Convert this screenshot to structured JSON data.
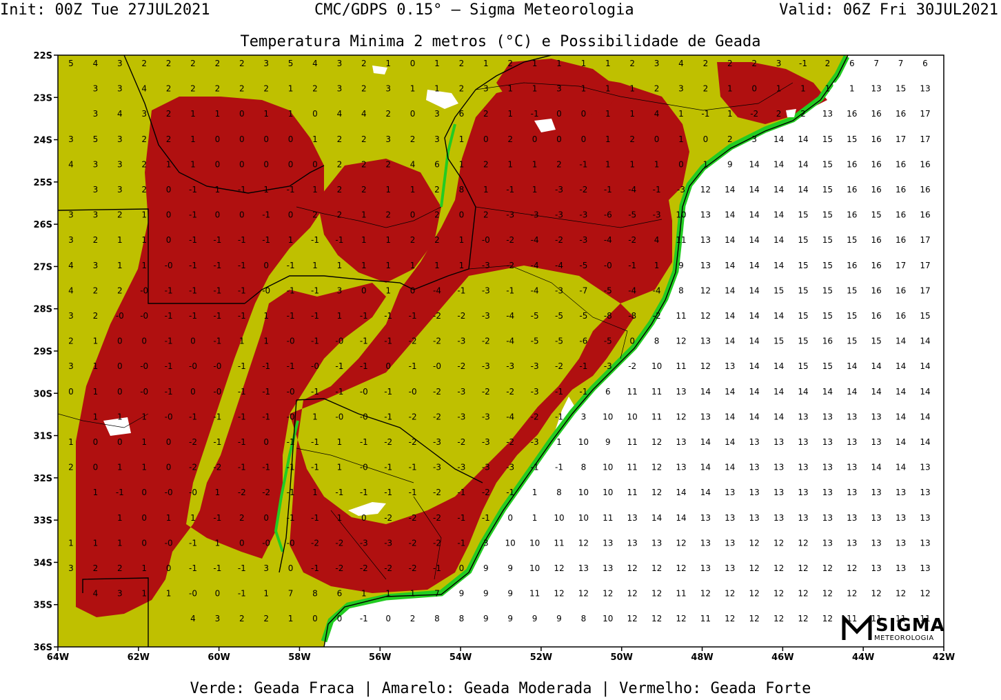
{
  "header": {
    "init": "Init: 00Z Tue 27JUL2021",
    "model": "CMC/GDPS 0.15° — Sigma Meteorologia",
    "valid": "Valid: 06Z Fri 30JUL2021",
    "title": "Temperatura Minima 2 metros (°C) e Possibilidade de Geada"
  },
  "legend": {
    "text": "Verde: Geada Fraca | Amarelo: Geada Moderada | Vermelho: Geada Forte"
  },
  "logo": {
    "brand": "SIGMA",
    "sub": "METEOROLOGIA"
  },
  "colors": {
    "geada_fraca": "#22cc22",
    "geada_moderada": "#bfc000",
    "geada_forte": "#b01010",
    "sea": "#ffffff"
  },
  "axes": {
    "lat_labels": [
      "22S",
      "23S",
      "24S",
      "25S",
      "26S",
      "27S",
      "28S",
      "29S",
      "30S",
      "31S",
      "32S",
      "33S",
      "34S",
      "35S",
      "36S"
    ],
    "lon_labels": [
      "64W",
      "62W",
      "60W",
      "58W",
      "56W",
      "54W",
      "52W",
      "50W",
      "48W",
      "46W",
      "44W",
      "42W"
    ]
  },
  "grid_values": {
    "rows": [
      [
        "5",
        "5",
        "4",
        "3",
        "2",
        "2",
        "2",
        "2",
        "2",
        "3",
        "5",
        "4",
        "3",
        "2",
        "1",
        "0",
        "1",
        "2",
        "1",
        "2",
        "1",
        "1",
        "1",
        "1",
        "2",
        "3",
        "4",
        "2",
        "2",
        "2",
        "3",
        "-1",
        "2",
        "6",
        "7",
        "7",
        "6"
      ],
      [
        "3",
        "3",
        "4",
        "2",
        "2",
        "2",
        "2",
        "2",
        "1",
        "2",
        "3",
        "2",
        "3",
        "1",
        "1",
        "2",
        "3",
        "1",
        "1",
        "3",
        "1",
        "1",
        "1",
        "2",
        "3",
        "2",
        "1",
        "0",
        "1",
        "1",
        "1",
        "1",
        "13",
        "15",
        "13"
      ],
      [
        "3",
        "4",
        "3",
        "2",
        "1",
        "1",
        "0",
        "1",
        "1",
        "0",
        "4",
        "4",
        "2",
        "0",
        "3",
        "6",
        "2",
        "1",
        "-1",
        "0",
        "0",
        "1",
        "1",
        "4",
        "1",
        "-1",
        "1",
        "-2",
        "2",
        "2",
        "13",
        "16",
        "16",
        "16",
        "17"
      ],
      [
        "3",
        "5",
        "3",
        "2",
        "2",
        "1",
        "0",
        "0",
        "0",
        "0",
        "1",
        "2",
        "2",
        "3",
        "2",
        "3",
        "1",
        "0",
        "2",
        "0",
        "0",
        "0",
        "1",
        "2",
        "0",
        "1",
        "0",
        "2",
        "3",
        "14",
        "14",
        "15",
        "15",
        "16",
        "17",
        "17"
      ],
      [
        "4",
        "3",
        "3",
        "2",
        "1",
        "1",
        "0",
        "0",
        "0",
        "0",
        "0",
        "2",
        "2",
        "2",
        "4",
        "6",
        "1",
        "2",
        "1",
        "1",
        "2",
        "-1",
        "1",
        "1",
        "1",
        "0",
        "1",
        "9",
        "14",
        "14",
        "14",
        "15",
        "16",
        "16",
        "16",
        "16"
      ],
      [
        "3",
        "3",
        "2",
        "0",
        "-1",
        "1",
        "-1",
        "1",
        "-1",
        "1",
        "2",
        "2",
        "1",
        "1",
        "2",
        "8",
        "1",
        "-1",
        "1",
        "-3",
        "-2",
        "-1",
        "-4",
        "-1",
        "-3",
        "12",
        "14",
        "14",
        "14",
        "14",
        "15",
        "16",
        "16",
        "16",
        "16"
      ],
      [
        "3",
        "3",
        "2",
        "1",
        "0",
        "-1",
        "0",
        "0",
        "-1",
        "0",
        "2",
        "2",
        "1",
        "2",
        "0",
        "2",
        "0",
        "2",
        "-3",
        "-3",
        "-3",
        "-3",
        "-6",
        "-5",
        "-3",
        "10",
        "13",
        "14",
        "14",
        "14",
        "15",
        "15",
        "16",
        "15",
        "16",
        "16"
      ],
      [
        "3",
        "2",
        "1",
        "1",
        "0",
        "-1",
        "-1",
        "-1",
        "-1",
        "1",
        "-1",
        "-1",
        "1",
        "1",
        "2",
        "2",
        "1",
        "-0",
        "-2",
        "-4",
        "-2",
        "-3",
        "-4",
        "-2",
        "4",
        "11",
        "13",
        "14",
        "14",
        "14",
        "15",
        "15",
        "15",
        "16",
        "16",
        "17"
      ],
      [
        "4",
        "3",
        "1",
        "1",
        "-0",
        "-1",
        "-1",
        "-1",
        "0",
        "-1",
        "1",
        "1",
        "1",
        "1",
        "1",
        "1",
        "1",
        "-3",
        "-2",
        "-4",
        "-4",
        "-5",
        "-0",
        "-1",
        "1",
        "9",
        "13",
        "14",
        "14",
        "14",
        "15",
        "15",
        "16",
        "16",
        "17",
        "17"
      ],
      [
        "4",
        "2",
        "2",
        "-0",
        "-1",
        "-1",
        "-1",
        "-1",
        "-0",
        "-1",
        "-1",
        "3",
        "0",
        "1",
        "0",
        "-4",
        "-1",
        "-3",
        "-1",
        "-4",
        "-3",
        "-7",
        "-5",
        "-4",
        "-4",
        "8",
        "12",
        "14",
        "14",
        "15",
        "15",
        "15",
        "15",
        "16",
        "16",
        "17"
      ],
      [
        "3",
        "2",
        "-0",
        "-0",
        "-1",
        "-1",
        "-1",
        "-1",
        "1",
        "-1",
        "-1",
        "1",
        "-1",
        "-1",
        "-1",
        "-2",
        "-2",
        "-3",
        "-4",
        "-5",
        "-5",
        "-5",
        "-8",
        "-8",
        "-2",
        "11",
        "12",
        "14",
        "14",
        "14",
        "15",
        "15",
        "15",
        "16",
        "16",
        "15"
      ],
      [
        "2",
        "1",
        "0",
        "0",
        "-1",
        "0",
        "-1",
        "1",
        "1",
        "-0",
        "-1",
        "-0",
        "-1",
        "-1",
        "-2",
        "-2",
        "-3",
        "-2",
        "-4",
        "-5",
        "-5",
        "-6",
        "-5",
        "0",
        "8",
        "12",
        "13",
        "14",
        "14",
        "15",
        "15",
        "16",
        "15",
        "15",
        "14",
        "14"
      ],
      [
        "3",
        "1",
        "0",
        "-0",
        "-1",
        "-0",
        "-0",
        "-1",
        "-1",
        "-1",
        "-0",
        "-1",
        "-1",
        "0",
        "-1",
        "-0",
        "-2",
        "-3",
        "-3",
        "-3",
        "-2",
        "-1",
        "-3",
        "-2",
        "10",
        "11",
        "12",
        "13",
        "14",
        "14",
        "15",
        "15",
        "14",
        "14",
        "14",
        "14"
      ],
      [
        "0",
        "1",
        "0",
        "-0",
        "-1",
        "0",
        "-0",
        "-1",
        "-1",
        "-0",
        "-1",
        "-1",
        "-0",
        "-1",
        "-0",
        "-2",
        "-3",
        "-2",
        "-2",
        "-3",
        "-1",
        "-1",
        "6",
        "11",
        "11",
        "13",
        "14",
        "14",
        "14",
        "14",
        "14",
        "14",
        "14",
        "14",
        "14",
        "14"
      ],
      [
        "1",
        "1",
        "1",
        "-0",
        "-1",
        "-1",
        "-1",
        "-1",
        "-0",
        "1",
        "-0",
        "-0",
        "-1",
        "-2",
        "-2",
        "-3",
        "-3",
        "-4",
        "-2",
        "-1",
        "3",
        "10",
        "10",
        "11",
        "12",
        "13",
        "14",
        "14",
        "14",
        "13",
        "13",
        "13",
        "13",
        "14",
        "14"
      ],
      [
        "1",
        "0",
        "0",
        "1",
        "0",
        "-2",
        "-1",
        "-1",
        "0",
        "-1",
        "-1",
        "1",
        "-1",
        "-2",
        "-2",
        "-3",
        "-2",
        "-3",
        "-2",
        "-3",
        "1",
        "10",
        "9",
        "11",
        "12",
        "13",
        "14",
        "14",
        "13",
        "13",
        "13",
        "13",
        "13",
        "13",
        "14",
        "14"
      ],
      [
        "2",
        "0",
        "1",
        "1",
        "0",
        "-2",
        "-2",
        "-1",
        "-1",
        "-1",
        "-1",
        "1",
        "-0",
        "-1",
        "-1",
        "-3",
        "-3",
        "-3",
        "-3",
        "-1",
        "-1",
        "8",
        "10",
        "11",
        "12",
        "13",
        "14",
        "14",
        "13",
        "13",
        "13",
        "13",
        "13",
        "14",
        "14",
        "13"
      ],
      [
        "1",
        "-1",
        "0",
        "-0",
        "-0",
        "1",
        "-2",
        "-2",
        "-1",
        "1",
        "-1",
        "-1",
        "-1",
        "-1",
        "-2",
        "-1",
        "-2",
        "-1",
        "1",
        "8",
        "10",
        "10",
        "11",
        "12",
        "14",
        "14",
        "13",
        "13",
        "13",
        "13",
        "13",
        "13",
        "13",
        "13",
        "13"
      ],
      [
        "1",
        "0",
        "1",
        "1",
        "-1",
        "2",
        "0",
        "-1",
        "-1",
        "1",
        "0",
        "-2",
        "-2",
        "-2",
        "-1",
        "-1",
        "0",
        "1",
        "10",
        "10",
        "11",
        "13",
        "14",
        "14",
        "13",
        "13",
        "13",
        "13",
        "13",
        "13",
        "13",
        "13",
        "13",
        "13"
      ],
      [
        "1",
        "1",
        "1",
        "0",
        "-0",
        "-1",
        "1",
        "0",
        "-0",
        "-0",
        "-2",
        "-2",
        "-3",
        "-3",
        "-2",
        "-2",
        "-1",
        "3",
        "10",
        "10",
        "11",
        "12",
        "13",
        "13",
        "13",
        "12",
        "13",
        "13",
        "12",
        "12",
        "12",
        "13",
        "13",
        "13",
        "13",
        "13"
      ],
      [
        "3",
        "2",
        "2",
        "1",
        "0",
        "-1",
        "-1",
        "-1",
        "3",
        "0",
        "-1",
        "-2",
        "-2",
        "-2",
        "-2",
        "-1",
        "0",
        "9",
        "9",
        "10",
        "12",
        "13",
        "13",
        "12",
        "12",
        "12",
        "13",
        "13",
        "12",
        "12",
        "12",
        "12",
        "12",
        "13",
        "13",
        "13"
      ],
      [
        "4",
        "3",
        "1",
        "1",
        "-0",
        "0",
        "-1",
        "1",
        "7",
        "8",
        "6",
        "1",
        "1",
        "1",
        "7",
        "9",
        "9",
        "9",
        "11",
        "12",
        "12",
        "12",
        "12",
        "12",
        "11",
        "12",
        "12",
        "12",
        "12",
        "12",
        "12",
        "12",
        "12",
        "12",
        "12"
      ],
      [
        "4",
        "3",
        "2",
        "2",
        "1",
        "0",
        "0",
        "-1",
        "0",
        "2",
        "8",
        "8",
        "9",
        "9",
        "9",
        "9",
        "8",
        "10",
        "12",
        "12",
        "12",
        "11",
        "12",
        "12",
        "12",
        "12",
        "12",
        "11",
        "11",
        "11",
        "11"
      ]
    ]
  }
}
